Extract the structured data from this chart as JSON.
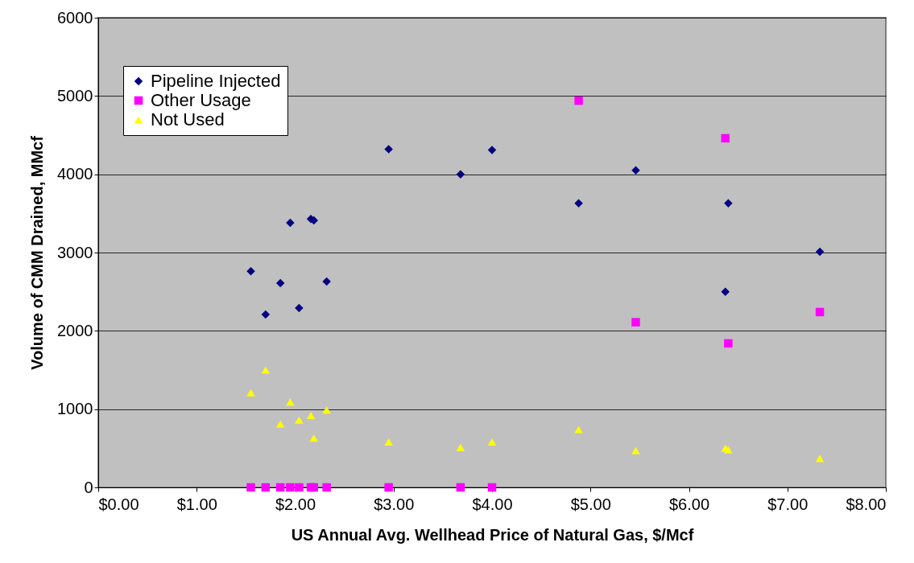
{
  "chart_data": {
    "type": "scatter",
    "xlabel": "US Annual Avg. Wellhead Price of Natural Gas, $/Mcf",
    "ylabel": "Volume of CMM Drained, MMcf",
    "x": [
      1.55,
      1.7,
      1.85,
      1.95,
      2.04,
      2.16,
      2.19,
      2.32,
      2.95,
      3.68,
      4.0,
      4.88,
      5.46,
      6.37,
      6.4,
      7.33
    ],
    "series": [
      {
        "name": "Pipeline Injected",
        "color": "#000080",
        "marker": "diamond",
        "values": [
          2760,
          2210,
          2610,
          3380,
          2290,
          3430,
          3410,
          2630,
          4320,
          4000,
          4310,
          3630,
          4050,
          2500,
          3630,
          3010
        ]
      },
      {
        "name": "Other Usage",
        "color": "#ff00ff",
        "marker": "square",
        "values": [
          0,
          0,
          0,
          0,
          0,
          0,
          0,
          0,
          0,
          0,
          0,
          4940,
          2110,
          4460,
          1840,
          2240
        ]
      },
      {
        "name": "Not Used",
        "color": "#ffff00",
        "marker": "triangle",
        "values": [
          1210,
          1500,
          810,
          1090,
          860,
          920,
          630,
          990,
          580,
          510,
          580,
          740,
          470,
          500,
          480,
          370
        ]
      }
    ],
    "xlim": [
      0,
      8
    ],
    "xticks": [
      {
        "value": 0,
        "label": "$0.00"
      },
      {
        "value": 1,
        "label": "$1.00"
      },
      {
        "value": 2,
        "label": "$2.00"
      },
      {
        "value": 3,
        "label": "$3.00"
      },
      {
        "value": 4,
        "label": "$4.00"
      },
      {
        "value": 5,
        "label": "$5.00"
      },
      {
        "value": 6,
        "label": "$6.00"
      },
      {
        "value": 7,
        "label": "$7.00"
      },
      {
        "value": 8,
        "label": "$8.00"
      }
    ],
    "ylim": [
      0,
      6000
    ],
    "yticks": [
      0,
      1000,
      2000,
      3000,
      4000,
      5000,
      6000
    ],
    "grid": "y",
    "legend": "top left"
  }
}
